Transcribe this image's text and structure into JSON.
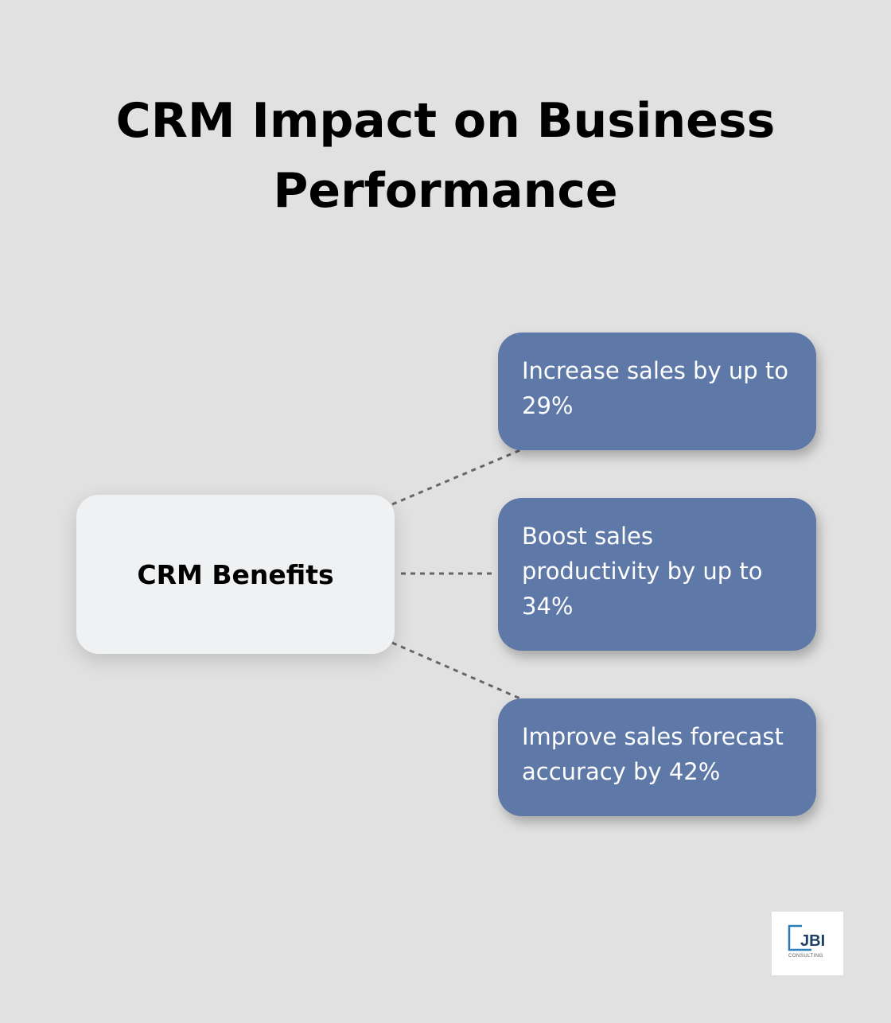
{
  "title": "CRM Impact on Business Performance",
  "center": {
    "label": "CRM Benefits"
  },
  "benefits": [
    {
      "label": "Increase sales by up to 29%"
    },
    {
      "label": "Boost sales productivity by up to 34%"
    },
    {
      "label": "Improve sales forecast accuracy by 42%"
    }
  ],
  "logo": {
    "text": "JBI",
    "subtext": "CONSULTING"
  },
  "colors": {
    "node": "#5e78a8",
    "center": "#f0f1f2",
    "background": "#e0e1e0"
  }
}
